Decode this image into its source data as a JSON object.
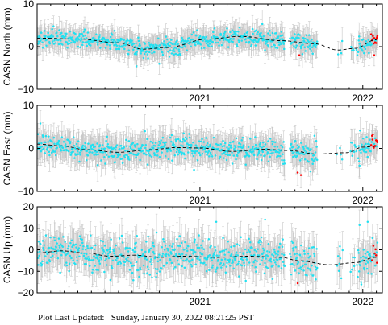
{
  "footer": {
    "label": "Plot Last Updated:",
    "timestamp": "Sunday, January 30, 2022 08:21:25 PST"
  },
  "colors": {
    "points": "#22e0f0",
    "recent_points": "#ff0000",
    "error_bars": "#c8c8c8",
    "model": "#000000",
    "axes": "#000000"
  },
  "chart_data": [
    {
      "type": "scatter",
      "title": "",
      "xlabel": "",
      "ylabel": "CASN North (mm)",
      "xlim": [
        2020.0,
        2022.12
      ],
      "ylim": [
        -10,
        10
      ],
      "xticks": [
        2021,
        2022
      ],
      "xtick_labels": [
        "2021",
        "2022"
      ],
      "yticks": [
        -10,
        0,
        10
      ],
      "ytick_labels": [
        "−10",
        "0",
        "10"
      ],
      "show_xtick_labels": true,
      "grid": false,
      "trend_knots": [
        [
          2020.0,
          2.0
        ],
        [
          2020.25,
          1.8
        ],
        [
          2020.5,
          0.9
        ],
        [
          2020.65,
          -0.6
        ],
        [
          2020.8,
          -0.2
        ],
        [
          2021.05,
          1.8
        ],
        [
          2021.25,
          2.4
        ],
        [
          2021.5,
          1.4
        ],
        [
          2021.7,
          0.7
        ],
        [
          2021.85,
          -0.8
        ],
        [
          2021.95,
          -0.4
        ],
        [
          2022.08,
          1.6
        ]
      ],
      "gaps": [
        [
          2021.52,
          2021.55
        ],
        [
          2021.72,
          2021.84
        ],
        [
          2021.88,
          2021.92
        ]
      ],
      "noise_sd": 1.0,
      "error_bar": 2.5,
      "red_recent": [
        2022.05,
        2022.09
      ],
      "outliers": [
        [
          2020.61,
          -4.6
        ],
        [
          2020.75,
          -4.0
        ],
        [
          2021.5,
          3.5
        ],
        [
          2021.61,
          -2.0
        ],
        [
          2022.07,
          -2.0
        ]
      ],
      "series": [
        {
          "name": "",
          "kind": "daily-positions",
          "color": "#22e0f0"
        },
        {
          "name": "",
          "kind": "model",
          "style": "dashed",
          "color": "#000000"
        }
      ]
    },
    {
      "type": "scatter",
      "title": "",
      "xlabel": "",
      "ylabel": "CASN East (mm)",
      "xlim": [
        2020.0,
        2022.12
      ],
      "ylim": [
        -10,
        10
      ],
      "xticks": [
        2021,
        2022
      ],
      "xtick_labels": [
        "2021",
        "2022"
      ],
      "yticks": [
        -10,
        0,
        10
      ],
      "ytick_labels": [
        "−10",
        "0",
        "10"
      ],
      "show_xtick_labels": true,
      "grid": false,
      "trend_knots": [
        [
          2020.0,
          1.0
        ],
        [
          2020.15,
          0.6
        ],
        [
          2020.3,
          -0.3
        ],
        [
          2020.5,
          -0.9
        ],
        [
          2020.7,
          -0.3
        ],
        [
          2020.85,
          0.2
        ],
        [
          2021.0,
          0.1
        ],
        [
          2021.2,
          -0.7
        ],
        [
          2021.4,
          -0.2
        ],
        [
          2021.55,
          -0.5
        ],
        [
          2021.72,
          -1.3
        ],
        [
          2021.9,
          -1.0
        ],
        [
          2022.0,
          0.3
        ],
        [
          2022.08,
          0.5
        ]
      ],
      "gaps": [
        [
          2021.52,
          2021.55
        ],
        [
          2021.72,
          2021.84
        ],
        [
          2021.88,
          2021.92
        ]
      ],
      "noise_sd": 1.3,
      "error_bar": 3.0,
      "red_recent": [
        2022.05,
        2022.09
      ],
      "outliers": [
        [
          2020.02,
          5.8
        ],
        [
          2021.6,
          -5.6
        ],
        [
          2021.62,
          -6.2
        ],
        [
          2021.98,
          -4.0
        ],
        [
          2020.9,
          3.5
        ]
      ],
      "series": [
        {
          "name": "",
          "kind": "daily-positions",
          "color": "#22e0f0"
        },
        {
          "name": "",
          "kind": "model",
          "style": "dashed",
          "color": "#000000"
        }
      ]
    },
    {
      "type": "scatter",
      "title": "",
      "xlabel": "",
      "ylabel": "CASN Up (mm)",
      "xlim": [
        2020.0,
        2022.12
      ],
      "ylim": [
        -20,
        20
      ],
      "xticks": [
        2021,
        2022
      ],
      "xtick_labels": [
        "2021",
        "2022"
      ],
      "yticks": [
        -20,
        -10,
        0,
        10,
        20
      ],
      "ytick_labels": [
        "−20",
        "−10",
        "0",
        "10",
        "20"
      ],
      "show_xtick_labels": true,
      "grid": false,
      "trend_knots": [
        [
          2020.0,
          -1.5
        ],
        [
          2020.15,
          -0.5
        ],
        [
          2020.3,
          -1.5
        ],
        [
          2020.45,
          -3.0
        ],
        [
          2020.6,
          -2.5
        ],
        [
          2020.75,
          -3.5
        ],
        [
          2020.9,
          -3.0
        ],
        [
          2021.1,
          -3.5
        ],
        [
          2021.3,
          -3.0
        ],
        [
          2021.5,
          -3.5
        ],
        [
          2021.6,
          -5.0
        ],
        [
          2021.8,
          -7.0
        ],
        [
          2021.95,
          -6.0
        ],
        [
          2022.08,
          -3.5
        ]
      ],
      "gaps": [
        [
          2021.52,
          2021.55
        ],
        [
          2021.72,
          2021.84
        ],
        [
          2021.88,
          2021.92
        ]
      ],
      "noise_sd": 4.0,
      "error_bar": 7.0,
      "red_recent": [
        2022.05,
        2022.09
      ],
      "outliers": [
        [
          2021.4,
          14.0
        ],
        [
          2021.1,
          13.0
        ],
        [
          2021.98,
          11.5
        ],
        [
          2022.03,
          13.0
        ],
        [
          2021.6,
          -15.5
        ],
        [
          2021.99,
          -15.0
        ],
        [
          2020.45,
          -14.0
        ]
      ],
      "series": [
        {
          "name": "",
          "kind": "daily-positions",
          "color": "#22e0f0"
        },
        {
          "name": "",
          "kind": "model",
          "style": "dashed",
          "color": "#000000"
        }
      ]
    }
  ]
}
